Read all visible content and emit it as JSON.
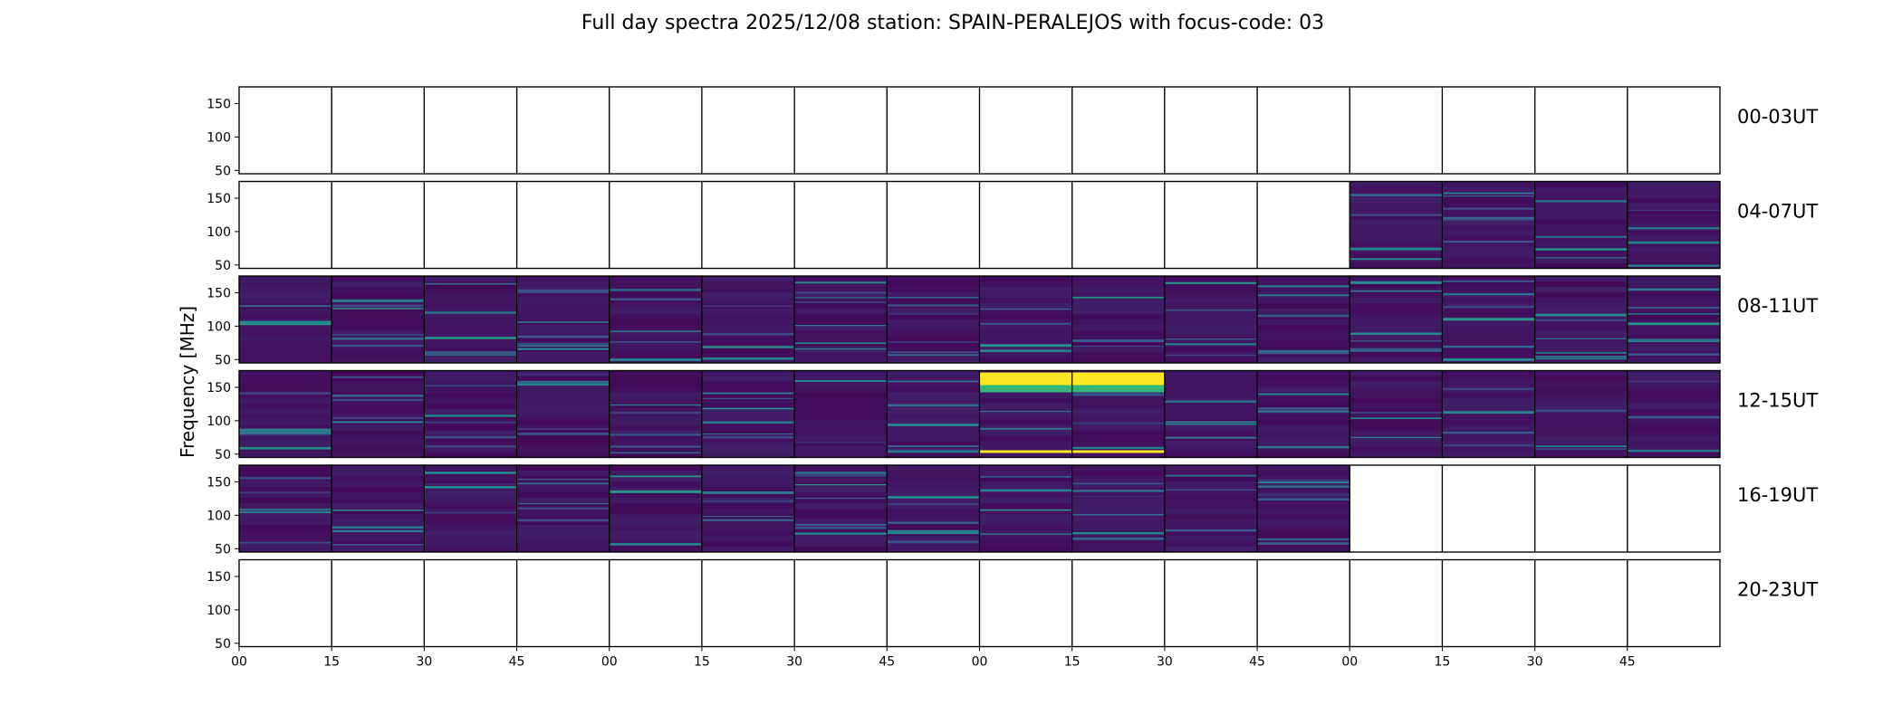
{
  "chart_data": {
    "type": "heatmap",
    "title": "Full day spectra 2025/12/08 station: SPAIN-PERALEJOS with focus-code: 03",
    "ylabel": "Frequency [MHz]",
    "xlabel": "",
    "colormap": "viridis",
    "ylim": [
      45,
      175
    ],
    "yticks": [
      {
        "label": "50",
        "value": 50
      },
      {
        "label": "100",
        "value": 100
      },
      {
        "label": "150",
        "value": 150
      }
    ],
    "xticks": [
      "00",
      "15",
      "30",
      "45",
      "00",
      "15",
      "30",
      "45",
      "00",
      "15",
      "30",
      "45",
      "00",
      "15",
      "30",
      "45"
    ],
    "rows": [
      {
        "label": "00-03UT",
        "panels": [
          0,
          0,
          0,
          0,
          0,
          0,
          0,
          0,
          0,
          0,
          0,
          0,
          0,
          0,
          0,
          0
        ]
      },
      {
        "label": "04-07UT",
        "panels": [
          0,
          0,
          0,
          0,
          0,
          0,
          0,
          0,
          0,
          0,
          0,
          0,
          1,
          1,
          1,
          1
        ]
      },
      {
        "label": "08-11UT",
        "panels": [
          1,
          1,
          1,
          1,
          1,
          1,
          1,
          1,
          1,
          1,
          1,
          1,
          1,
          1,
          1,
          1
        ]
      },
      {
        "label": "12-15UT",
        "panels": [
          1,
          1,
          1,
          1,
          1,
          1,
          1,
          1,
          1,
          1,
          1,
          1,
          1,
          1,
          1,
          1
        ]
      },
      {
        "label": "16-19UT",
        "panels": [
          1,
          1,
          1,
          1,
          1,
          1,
          1,
          1,
          1,
          1,
          1,
          1,
          0,
          0,
          0,
          0
        ]
      },
      {
        "label": "20-23UT",
        "panels": [
          0,
          0,
          0,
          0,
          0,
          0,
          0,
          0,
          0,
          0,
          0,
          0,
          0,
          0,
          0,
          0
        ]
      }
    ],
    "colors": {
      "background": "#440154",
      "low": "#46115f",
      "mid": "#31688e",
      "high": "#35b779",
      "peak": "#fde725"
    }
  }
}
